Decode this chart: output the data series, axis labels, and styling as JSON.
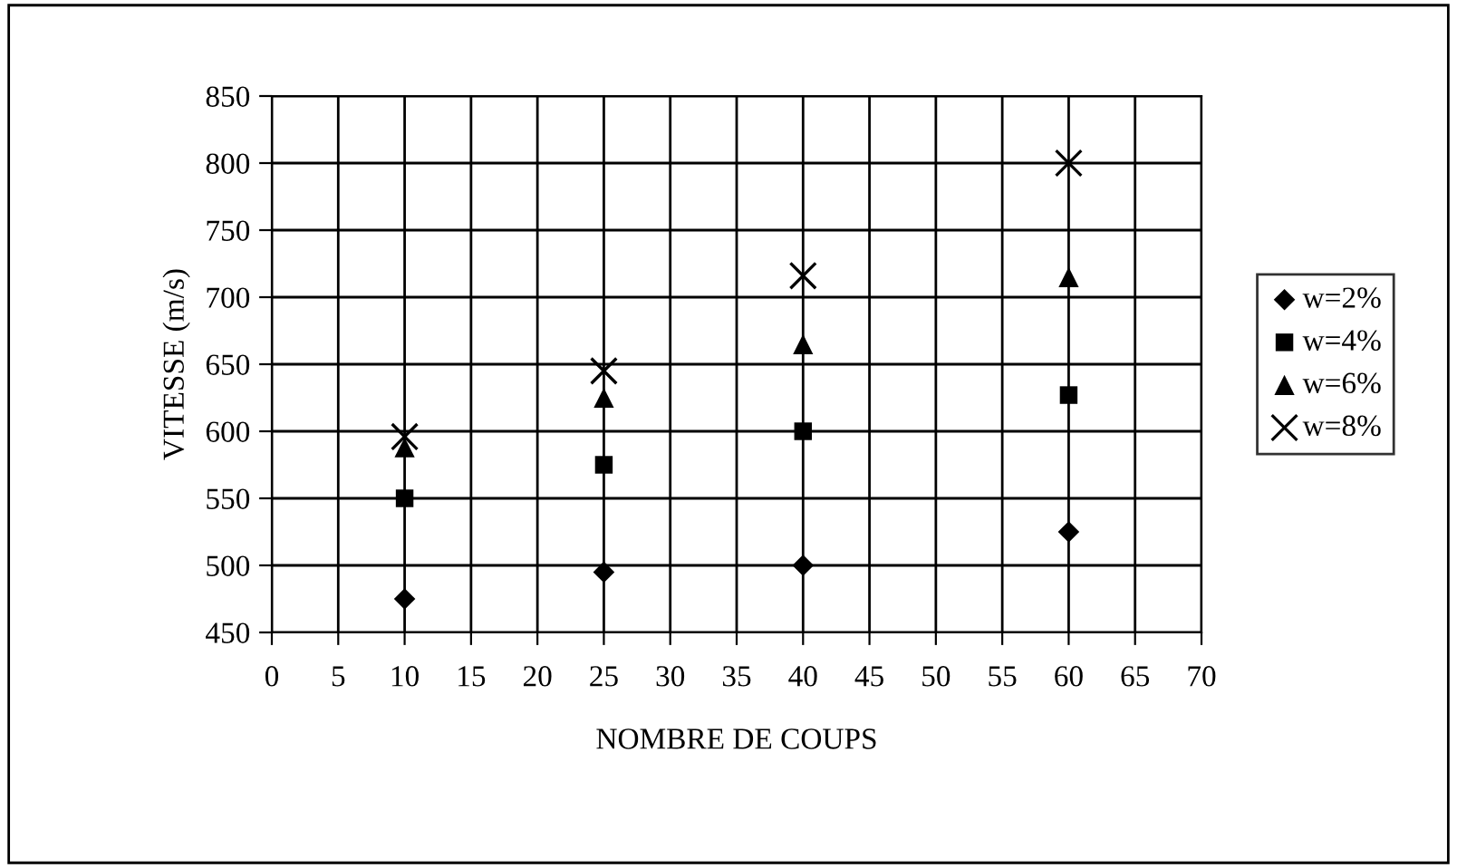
{
  "chart_data": {
    "type": "scatter",
    "xlabel": "NOMBRE DE COUPS",
    "ylabel": "VITESSE (m/s)",
    "series": [
      {
        "name": "w=2%",
        "color": "#000000",
        "marker": "diamond",
        "x": [
          10,
          25,
          40,
          60
        ],
        "values": [
          475,
          495,
          500,
          525
        ]
      },
      {
        "name": "w=4%",
        "color": "#000000",
        "marker": "square",
        "x": [
          10,
          25,
          40,
          60
        ],
        "values": [
          550,
          575,
          600,
          627
        ]
      },
      {
        "name": "w=6%",
        "color": "#000000",
        "marker": "triangle",
        "x": [
          10,
          25,
          40,
          60
        ],
        "values": [
          588,
          625,
          665,
          715
        ]
      },
      {
        "name": "w=8%",
        "color": "#000000",
        "marker": "cross",
        "x": [
          10,
          25,
          40,
          60
        ],
        "values": [
          596,
          645,
          716,
          800
        ]
      }
    ],
    "xlim": [
      0,
      70
    ],
    "xticks": [
      0,
      5,
      10,
      15,
      20,
      25,
      30,
      35,
      40,
      45,
      50,
      55,
      60,
      65,
      70
    ],
    "ylim": [
      450,
      850
    ],
    "yticks": [
      450,
      500,
      550,
      600,
      650,
      700,
      750,
      800,
      850
    ],
    "grid": true,
    "legend": "right"
  }
}
